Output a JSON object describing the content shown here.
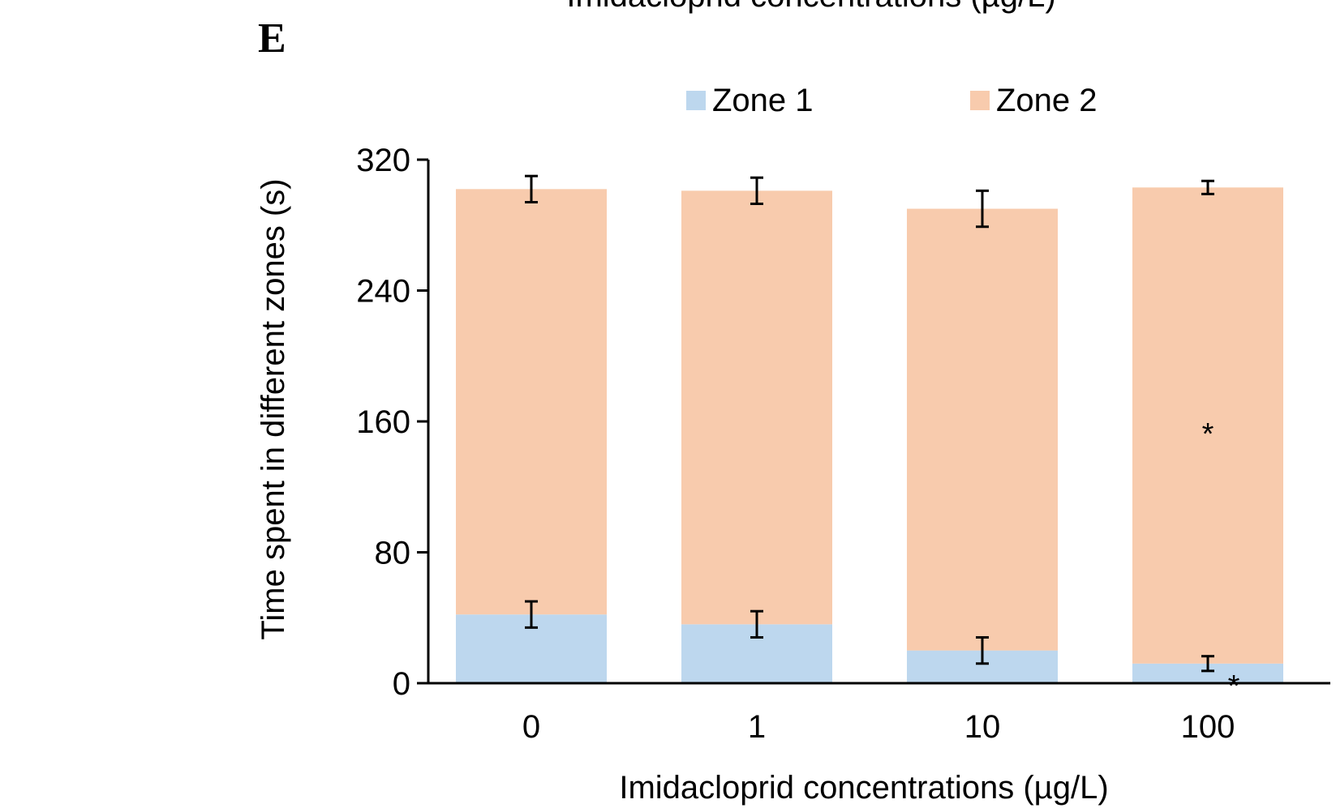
{
  "top_caption": "Imidacloprid concentrations (µg/L)",
  "panel_label": "E",
  "chart_data": {
    "type": "bar",
    "stacked": true,
    "categories": [
      "0",
      "1",
      "10",
      "100"
    ],
    "series": [
      {
        "name": "Zone 1",
        "color": "#bdd7ee",
        "values": [
          42,
          36,
          20,
          12
        ],
        "errors": [
          8,
          8,
          8,
          4.5
        ]
      },
      {
        "name": "Zone 2",
        "color": "#f8cbad",
        "values": [
          260,
          265,
          270,
          291
        ],
        "errors": [
          8,
          8,
          11,
          4
        ]
      }
    ],
    "annotations": [
      {
        "category": "100",
        "series": "Zone 1",
        "text": "*"
      },
      {
        "category": "100",
        "series": "Zone 2",
        "text": "*"
      }
    ],
    "xlabel": "Imidacloprid concentrations (µg/L)",
    "ylabel": "Time spent in different zones (s)",
    "ylim": [
      0,
      320
    ],
    "yticks": [
      "0",
      "80",
      "160",
      "240",
      "320"
    ],
    "legend_position": "top",
    "grid": false
  }
}
